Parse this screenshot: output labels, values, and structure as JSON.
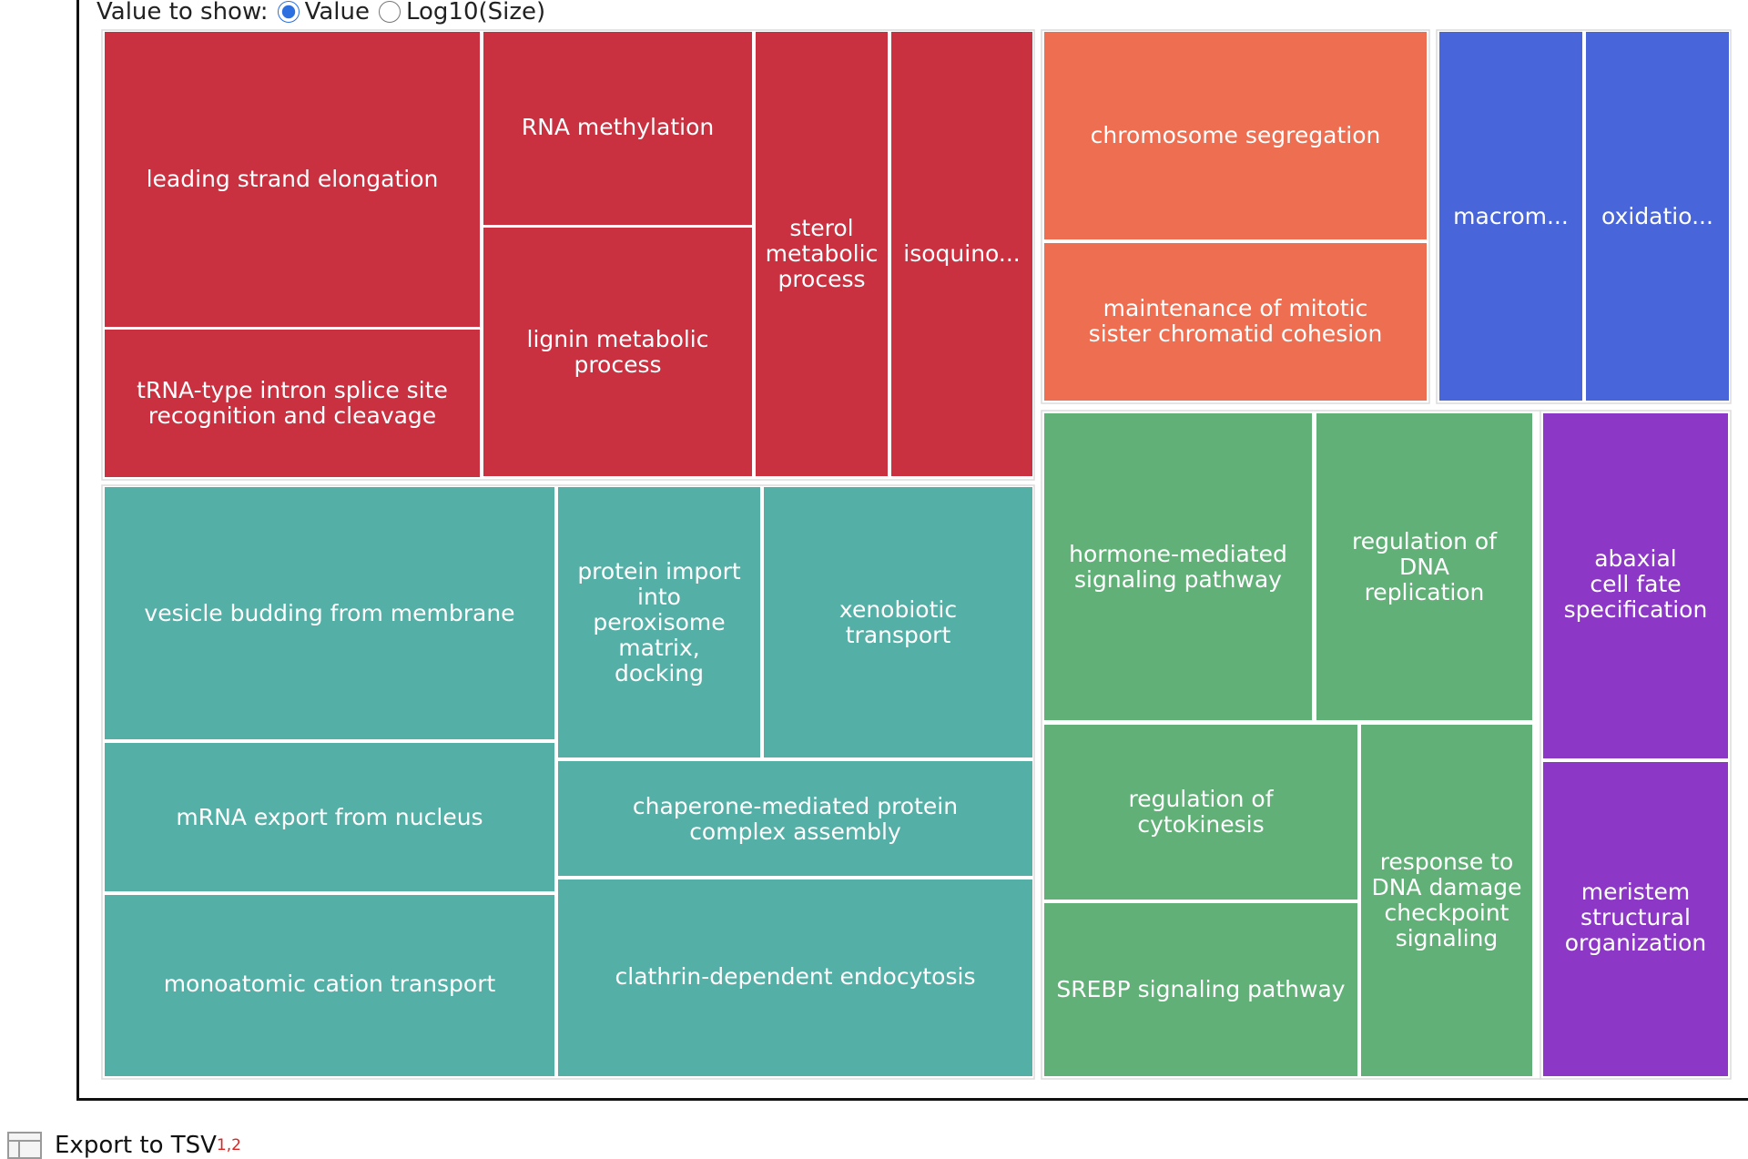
{
  "controls": {
    "label": "Value to show:",
    "options": [
      "Value",
      "Log10(Size)"
    ],
    "selected": "Value"
  },
  "export": {
    "label": "Export to TSV",
    "footnotes": "1,2"
  },
  "chart_data": {
    "type": "treemap",
    "groups": [
      {
        "color": "#c93040",
        "items": [
          "leading strand elongation",
          "tRNA-type intron splice site recognition and cleavage",
          "RNA methylation",
          "lignin metabolic process",
          "sterol metabolic process",
          "isoquino..."
        ]
      },
      {
        "color": "#ed6e50",
        "items": [
          "chromosome segregation",
          "maintenance of mitotic sister chromatid cohesion"
        ]
      },
      {
        "color": "#4866d9",
        "items": [
          "macrom...",
          "oxidatio..."
        ]
      },
      {
        "color": "#54afa6",
        "items": [
          "vesicle budding from membrane",
          "mRNA export from nucleus",
          "monoatomic cation transport",
          "protein import into peroxisome matrix, docking",
          "xenobiotic transport",
          "chaperone-mediated protein complex assembly",
          "clathrin-dependent endocytosis"
        ]
      },
      {
        "color": "#61b077",
        "items": [
          "hormone-mediated signaling pathway",
          "regulation of DNA replication",
          "regulation of cytokinesis",
          "SREBP signaling pathway",
          "response to DNA damage checkpoint signaling"
        ]
      },
      {
        "color": "#8c37c6",
        "items": [
          "abaxial cell fate specification",
          "meristem structural organization"
        ]
      }
    ]
  }
}
